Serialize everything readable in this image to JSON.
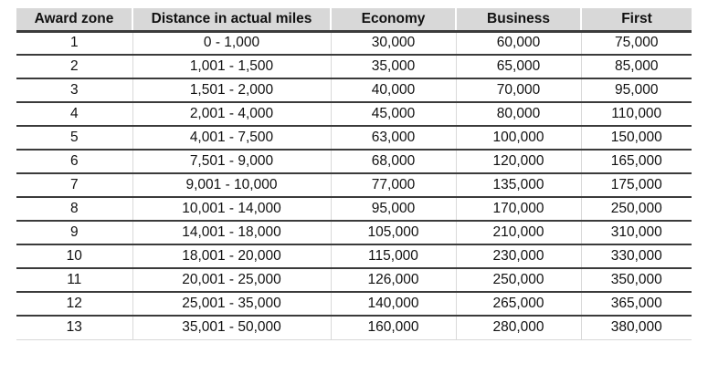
{
  "colors": {
    "header_bg": "#d8d8d8",
    "dark_line": "#3b3b3b",
    "light_line": "#d9d9d9",
    "text": "#111111"
  },
  "table": {
    "columns": [
      "Award zone",
      "Distance in actual miles",
      "Economy",
      "Business",
      "First"
    ],
    "rows": [
      [
        "1",
        "0 - 1,000",
        "30,000",
        "60,000",
        "75,000"
      ],
      [
        "2",
        "1,001 - 1,500",
        "35,000",
        "65,000",
        "85,000"
      ],
      [
        "3",
        "1,501 - 2,000",
        "40,000",
        "70,000",
        "95,000"
      ],
      [
        "4",
        "2,001 - 4,000",
        "45,000",
        "80,000",
        "110,000"
      ],
      [
        "5",
        "4,001 - 7,500",
        "63,000",
        "100,000",
        "150,000"
      ],
      [
        "6",
        "7,501 - 9,000",
        "68,000",
        "120,000",
        "165,000"
      ],
      [
        "7",
        "9,001 - 10,000",
        "77,000",
        "135,000",
        "175,000"
      ],
      [
        "8",
        "10,001 - 14,000",
        "95,000",
        "170,000",
        "250,000"
      ],
      [
        "9",
        "14,001 - 18,000",
        "105,000",
        "210,000",
        "310,000"
      ],
      [
        "10",
        "18,001 - 20,000",
        "115,000",
        "230,000",
        "330,000"
      ],
      [
        "11",
        "20,001 - 25,000",
        "126,000",
        "250,000",
        "350,000"
      ],
      [
        "12",
        "25,001 - 35,000",
        "140,000",
        "265,000",
        "365,000"
      ],
      [
        "13",
        "35,001 - 50,000",
        "160,000",
        "280,000",
        "380,000"
      ]
    ]
  }
}
